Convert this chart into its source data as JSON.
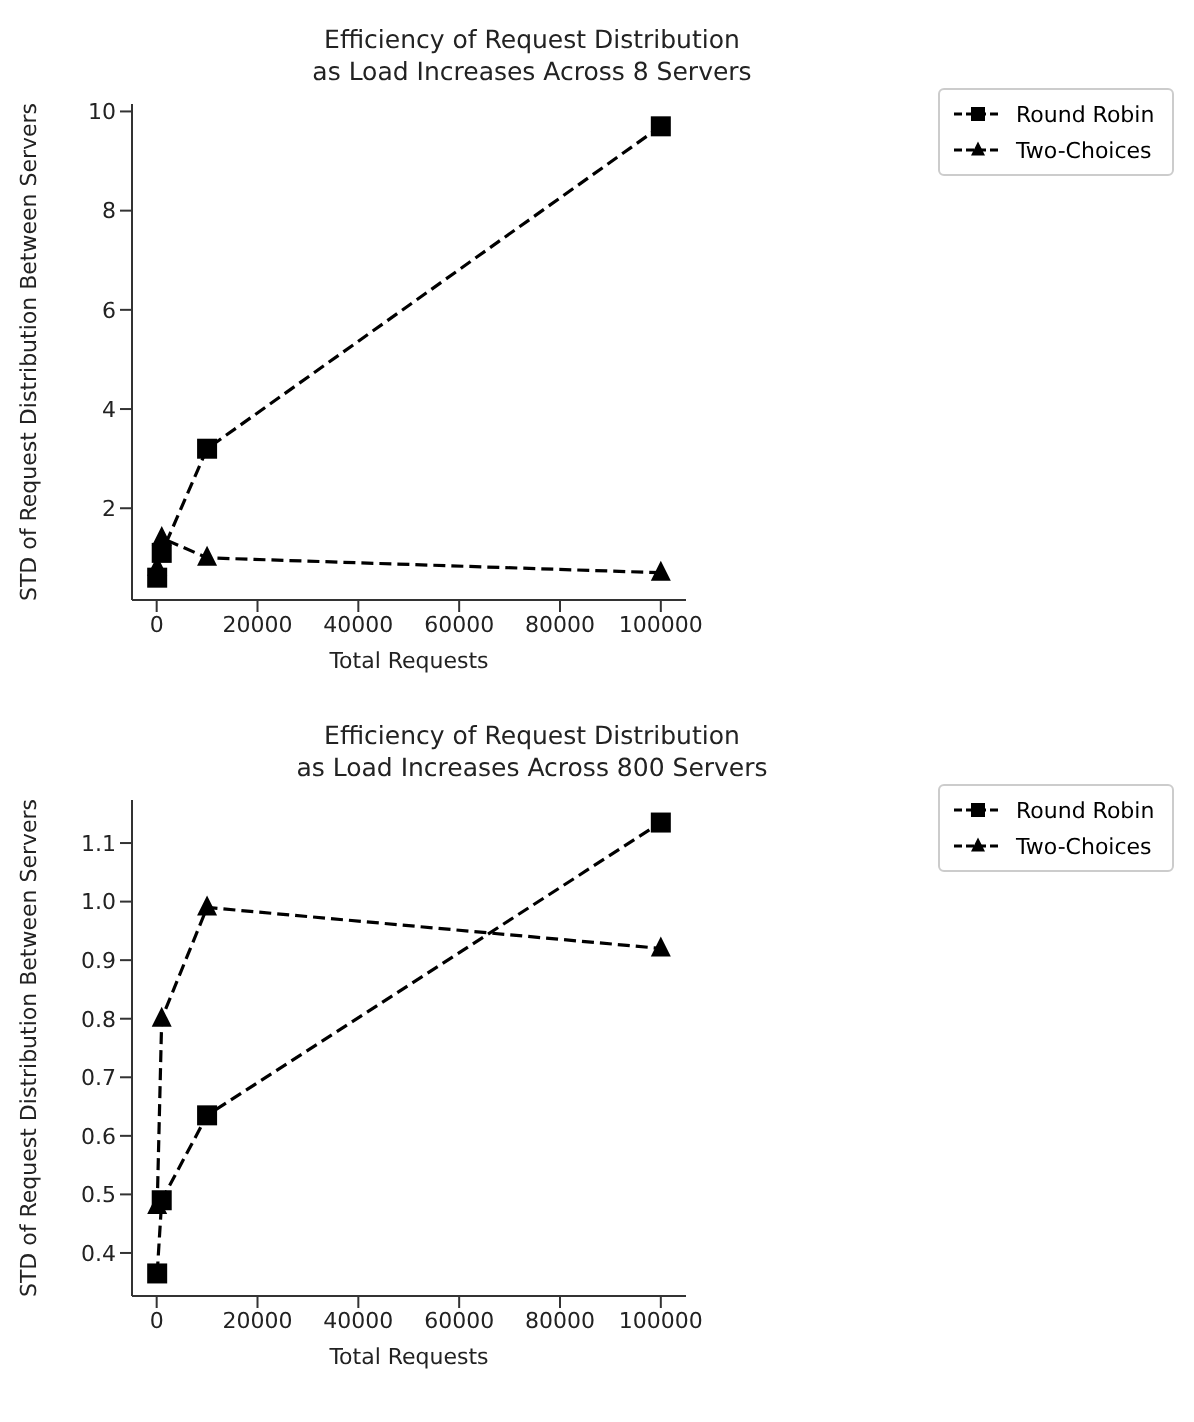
{
  "chart_data": [
    {
      "type": "line",
      "title": "Efficiency of Request Distribution\nas Load Increases Across 8 Servers",
      "xlabel": "Total Requests",
      "ylabel": "STD of Request Distribution Between Servers",
      "x": [
        100,
        1000,
        10000,
        100000
      ],
      "series": [
        {
          "name": "Round Robin",
          "color": "#000000",
          "marker": "square",
          "values": [
            0.6,
            1.1,
            3.2,
            9.7
          ]
        },
        {
          "name": "Two-Choices",
          "color": "#000000",
          "marker": "triangle",
          "values": [
            0.8,
            1.4,
            1.0,
            0.7
          ]
        }
      ],
      "xlim": [
        -4895,
        104995
      ],
      "xticks": [
        0,
        20000,
        40000,
        60000,
        80000,
        100000
      ],
      "ylim": [
        0.15,
        10.15
      ],
      "yticks": [
        2,
        4,
        6,
        8,
        10
      ],
      "line_style": "dashed",
      "legend": "top right",
      "grid": false
    },
    {
      "type": "line",
      "title": "Efficiency of Request Distribution\nas Load Increases Across 800 Servers",
      "xlabel": "Total Requests",
      "ylabel": "STD of Request Distribution Between Servers",
      "x": [
        100,
        1000,
        10000,
        100000
      ],
      "series": [
        {
          "name": "Round Robin",
          "color": "#000000",
          "marker": "square",
          "values": [
            0.365,
            0.49,
            0.635,
            1.135
          ]
        },
        {
          "name": "Two-Choices",
          "color": "#000000",
          "marker": "triangle",
          "values": [
            0.48,
            0.8,
            0.99,
            0.92
          ]
        }
      ],
      "xlim": [
        -4895,
        104995
      ],
      "xticks": [
        0,
        20000,
        40000,
        60000,
        80000,
        100000
      ],
      "ylim": [
        0.3265,
        1.1735
      ],
      "yticks": [
        0.4,
        0.5,
        0.6,
        0.7,
        0.8,
        0.9,
        {
          "value": 1,
          "label": "1.0"
        },
        1.1
      ],
      "line_style": "dashed",
      "legend": "top right",
      "grid": false
    }
  ]
}
